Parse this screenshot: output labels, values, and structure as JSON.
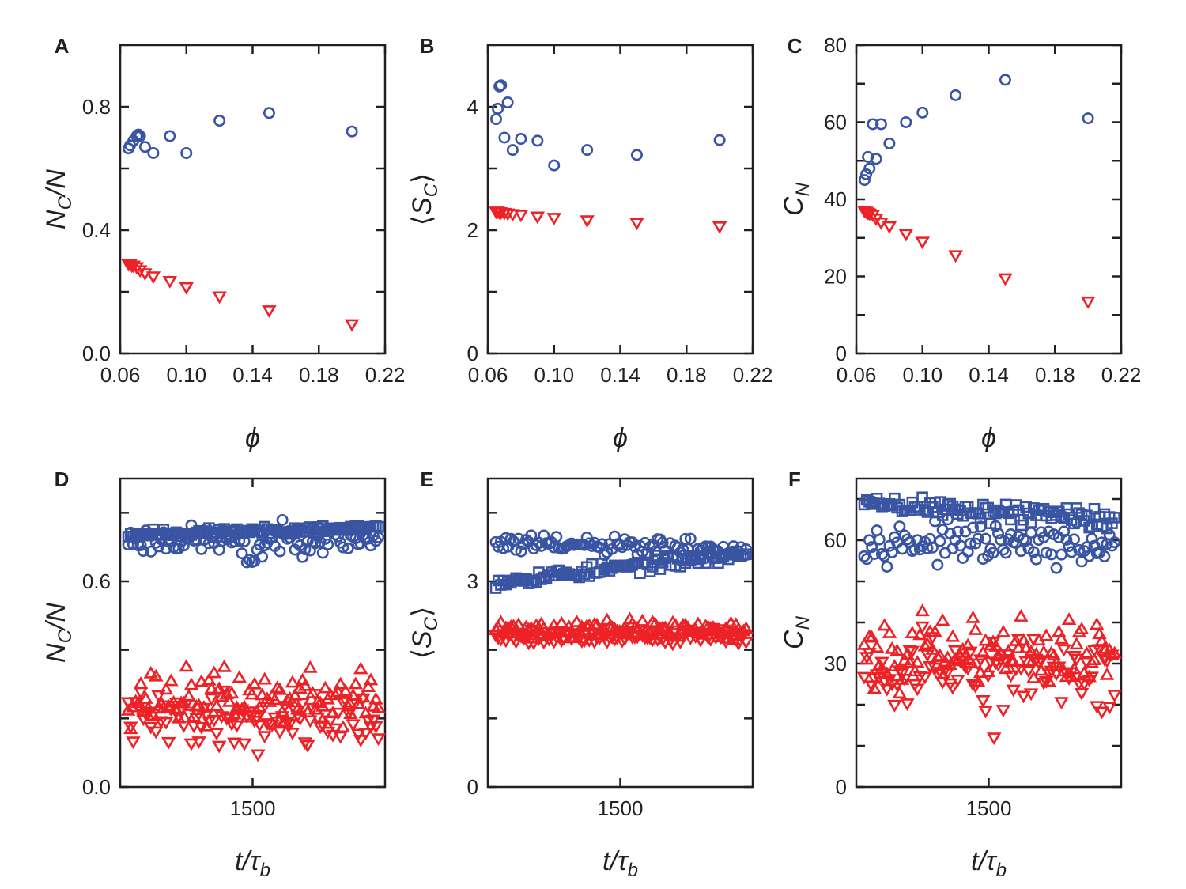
{
  "colors": {
    "blue": "#3a54a4",
    "red": "#ec2227",
    "axis": "#231f20"
  },
  "chart_data": [
    {
      "id": "A",
      "letter": "A",
      "type": "scatter",
      "xlabel": "ϕ",
      "ylabel": {
        "main": "N",
        "sub": "C",
        "post": "/N"
      },
      "xlim": [
        0.06,
        0.22
      ],
      "ylim": [
        0.0,
        1.0
      ],
      "xticks": [
        0.06,
        0.1,
        0.14,
        0.18,
        0.22
      ],
      "xtick_labels": [
        "0.06",
        "0.10",
        "0.14",
        "0.18",
        "0.22"
      ],
      "yticks": [
        0.0,
        0.4,
        0.8
      ],
      "ytick_labels": [
        "0.0",
        "0.4",
        "0.8"
      ],
      "yminor": [
        0.2,
        0.6
      ],
      "series": [
        {
          "name": "blue circles",
          "marker": "circle",
          "color": "blue",
          "x": [
            0.065,
            0.066,
            0.068,
            0.07,
            0.071,
            0.072,
            0.075,
            0.08,
            0.09,
            0.1,
            0.12,
            0.15,
            0.2
          ],
          "y": [
            0.665,
            0.675,
            0.69,
            0.705,
            0.71,
            0.705,
            0.67,
            0.65,
            0.705,
            0.65,
            0.755,
            0.78,
            0.72
          ]
        },
        {
          "name": "red triangles",
          "marker": "tri-down",
          "color": "red",
          "x": [
            0.065,
            0.066,
            0.067,
            0.068,
            0.07,
            0.072,
            0.075,
            0.08,
            0.09,
            0.1,
            0.12,
            0.15,
            0.2
          ],
          "y": [
            0.29,
            0.29,
            0.285,
            0.285,
            0.28,
            0.27,
            0.26,
            0.25,
            0.235,
            0.215,
            0.185,
            0.14,
            0.095
          ]
        }
      ]
    },
    {
      "id": "B",
      "letter": "B",
      "type": "scatter",
      "xlabel": "ϕ",
      "ylabel": {
        "main": "S",
        "sub": "C",
        "angle": true
      },
      "xlim": [
        0.06,
        0.22
      ],
      "ylim": [
        0,
        5
      ],
      "xticks": [
        0.06,
        0.1,
        0.14,
        0.18,
        0.22
      ],
      "xtick_labels": [
        "0.06",
        "0.10",
        "0.14",
        "0.18",
        "0.22"
      ],
      "yticks": [
        0,
        2,
        4
      ],
      "ytick_labels": [
        "0",
        "2",
        "4"
      ],
      "yminor": [
        1,
        3
      ],
      "series": [
        {
          "name": "blue circles",
          "marker": "circle",
          "color": "blue",
          "x": [
            0.065,
            0.066,
            0.067,
            0.068,
            0.07,
            0.072,
            0.075,
            0.08,
            0.09,
            0.1,
            0.12,
            0.15,
            0.2
          ],
          "y": [
            3.8,
            3.97,
            4.33,
            4.35,
            3.5,
            4.07,
            3.3,
            3.48,
            3.45,
            3.05,
            3.3,
            3.22,
            3.46
          ]
        },
        {
          "name": "red triangles",
          "marker": "tri-down",
          "color": "red",
          "x": [
            0.065,
            0.066,
            0.067,
            0.068,
            0.07,
            0.072,
            0.075,
            0.08,
            0.09,
            0.1,
            0.12,
            0.15,
            0.2
          ],
          "y": [
            2.3,
            2.3,
            2.29,
            2.29,
            2.28,
            2.27,
            2.26,
            2.25,
            2.22,
            2.2,
            2.16,
            2.12,
            2.06
          ]
        }
      ]
    },
    {
      "id": "C",
      "letter": "C",
      "type": "scatter",
      "xlabel": "ϕ",
      "ylabel": {
        "main": "C",
        "sub": "N"
      },
      "xlim": [
        0.06,
        0.22
      ],
      "ylim": [
        0,
        80
      ],
      "xticks": [
        0.06,
        0.1,
        0.14,
        0.18,
        0.22
      ],
      "xtick_labels": [
        "0.06",
        "0.10",
        "0.14",
        "0.18",
        "0.22"
      ],
      "yticks": [
        0,
        20,
        40,
        60,
        80
      ],
      "ytick_labels": [
        "0",
        "20",
        "40",
        "60",
        "80"
      ],
      "yminor": [
        10,
        30,
        50,
        70
      ],
      "series": [
        {
          "name": "blue circles",
          "marker": "circle",
          "color": "blue",
          "x": [
            0.065,
            0.066,
            0.067,
            0.068,
            0.07,
            0.072,
            0.075,
            0.08,
            0.09,
            0.1,
            0.12,
            0.15,
            0.2
          ],
          "y": [
            45,
            46.5,
            51,
            48,
            59.5,
            50.5,
            59.5,
            54.5,
            60,
            62.5,
            67,
            71,
            61
          ]
        },
        {
          "name": "red triangles",
          "marker": "tri-down",
          "color": "red",
          "x": [
            0.065,
            0.066,
            0.067,
            0.068,
            0.07,
            0.072,
            0.075,
            0.08,
            0.09,
            0.1,
            0.12,
            0.15,
            0.2
          ],
          "y": [
            37,
            36.8,
            36.5,
            36.3,
            36,
            35,
            34,
            33,
            31,
            29,
            25.5,
            19.5,
            13.5
          ]
        }
      ]
    },
    {
      "id": "D",
      "letter": "D",
      "type": "scatter",
      "time_series": true,
      "xlabel": {
        "main": "t/τ",
        "sub": "b"
      },
      "ylabel": {
        "main": "N",
        "sub": "C",
        "post": "/N"
      },
      "xlim": [
        1000,
        2000
      ],
      "ylim": [
        0.0,
        0.9
      ],
      "xticks": [
        1500
      ],
      "xtick_labels": [
        "1500"
      ],
      "yticks": [
        0.0,
        0.6
      ],
      "ytick_labels": [
        "0.0",
        "0.6"
      ],
      "yminor": [
        0.2,
        0.4,
        0.8
      ],
      "series": [
        {
          "name": "blue squares",
          "marker": "square",
          "color": "blue",
          "gen": "band",
          "x0": 1030,
          "x1": 1975,
          "n": 100,
          "y": [
            0.738,
            0.755
          ],
          "amp": 0.009,
          "seed": 11
        },
        {
          "name": "blue circles",
          "marker": "circle",
          "color": "blue",
          "gen": "band",
          "x0": 1030,
          "x1": 1975,
          "n": 100,
          "y": [
            0.72,
            0.725
          ],
          "amp": 0.03,
          "dip": {
            "x": 1490,
            "depth": 0.05,
            "width": 50
          },
          "seed": 23
        },
        {
          "name": "red up-triangles",
          "marker": "tri-up",
          "color": "red",
          "gen": "band",
          "x0": 1030,
          "x1": 1975,
          "n": 100,
          "y": [
            0.26,
            0.26
          ],
          "amp": 0.06,
          "seed": 37
        },
        {
          "name": "red down-triangles",
          "marker": "tri-down",
          "color": "red",
          "gen": "band",
          "x0": 1030,
          "x1": 1975,
          "n": 100,
          "y": [
            0.2,
            0.2
          ],
          "amp": 0.055,
          "outlier": {
            "x": 1520,
            "y": 0.095
          },
          "seed": 41
        }
      ]
    },
    {
      "id": "E",
      "letter": "E",
      "type": "scatter",
      "time_series": true,
      "xlabel": {
        "main": "t/τ",
        "sub": "b"
      },
      "ylabel": {
        "main": "S",
        "sub": "C",
        "angle": true
      },
      "xlim": [
        1000,
        2000
      ],
      "ylim": [
        0,
        4.5
      ],
      "xticks": [
        1500
      ],
      "xtick_labels": [
        "1500"
      ],
      "yticks": [
        0,
        3
      ],
      "ytick_labels": [
        "0",
        "3"
      ],
      "yminor": [
        1,
        2,
        4
      ],
      "series": [
        {
          "name": "blue squares",
          "marker": "square",
          "color": "blue",
          "gen": "band",
          "x0": 1030,
          "x1": 1975,
          "n": 100,
          "y": [
            3.0,
            3.4
          ],
          "amp": 0.07,
          "seed": 53
        },
        {
          "name": "blue circles",
          "marker": "circle",
          "color": "blue",
          "gen": "band",
          "x0": 1030,
          "x1": 1975,
          "n": 100,
          "y": [
            3.55,
            3.45
          ],
          "amp": 0.11,
          "seed": 61
        },
        {
          "name": "red up-triangles",
          "marker": "tri-up",
          "color": "red",
          "gen": "band",
          "x0": 1030,
          "x1": 1975,
          "n": 100,
          "y": [
            2.3,
            2.3
          ],
          "amp": 0.1,
          "seed": 71
        },
        {
          "name": "red down-triangles",
          "marker": "tri-down",
          "color": "red",
          "gen": "band",
          "x0": 1030,
          "x1": 1975,
          "n": 100,
          "y": [
            2.2,
            2.2
          ],
          "amp": 0.08,
          "seed": 79
        }
      ]
    },
    {
      "id": "F",
      "letter": "F",
      "type": "scatter",
      "time_series": true,
      "xlabel": {
        "main": "t/τ",
        "sub": "b"
      },
      "ylabel": {
        "main": "C",
        "sub": "N"
      },
      "xlim": [
        1000,
        2000
      ],
      "ylim": [
        0,
        75
      ],
      "xticks": [
        1500
      ],
      "xtick_labels": [
        "1500"
      ],
      "yticks": [
        0,
        30,
        60
      ],
      "ytick_labels": [
        "0",
        "30",
        "60"
      ],
      "yminor": [
        10,
        20,
        40,
        50,
        70
      ],
      "series": [
        {
          "name": "blue squares",
          "marker": "square",
          "color": "blue",
          "gen": "band",
          "x0": 1030,
          "x1": 1975,
          "n": 100,
          "y": [
            69,
            65
          ],
          "amp": 2.0,
          "seed": 89
        },
        {
          "name": "blue circles",
          "marker": "circle",
          "color": "blue",
          "gen": "band",
          "x0": 1030,
          "x1": 1975,
          "n": 100,
          "y": [
            60,
            58
          ],
          "amp": 3.2,
          "seed": 97
        },
        {
          "name": "red up-triangles",
          "marker": "tri-up",
          "color": "red",
          "gen": "band",
          "x0": 1030,
          "x1": 1975,
          "n": 100,
          "y": [
            33,
            33
          ],
          "amp": 6.0,
          "seed": 101
        },
        {
          "name": "red down-triangles",
          "marker": "tri-down",
          "color": "red",
          "gen": "band",
          "x0": 1030,
          "x1": 1975,
          "n": 100,
          "y": [
            28,
            28
          ],
          "amp": 6.0,
          "outlier": {
            "x": 1520,
            "y": 12
          },
          "seed": 107
        }
      ]
    }
  ]
}
